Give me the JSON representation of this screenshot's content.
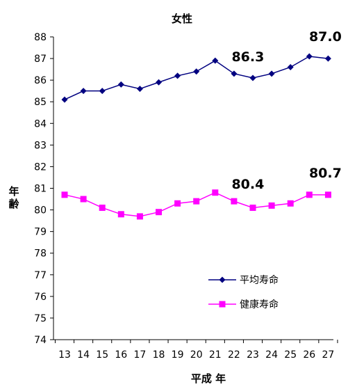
{
  "chart_data": {
    "type": "line",
    "title": "女性",
    "xlabel": "平成 年",
    "ylabel": "年齢",
    "x": [
      "13",
      "14",
      "15",
      "16",
      "17",
      "18",
      "19",
      "20",
      "21",
      "22",
      "23",
      "24",
      "25",
      "26",
      "27"
    ],
    "ylim": [
      74,
      88
    ],
    "yticks": [
      74,
      75,
      76,
      77,
      78,
      79,
      80,
      81,
      82,
      83,
      84,
      85,
      86,
      87,
      88
    ],
    "grid": false,
    "legend_position": "lower-right",
    "series": [
      {
        "name": "平均寿命",
        "color": "#000080",
        "marker": "diamond",
        "values": [
          85.1,
          85.5,
          85.5,
          85.8,
          85.6,
          85.9,
          86.2,
          86.4,
          86.9,
          86.3,
          86.1,
          86.3,
          86.6,
          87.1,
          87.0
        ]
      },
      {
        "name": "健康寿命",
        "color": "#FF00FF",
        "marker": "square",
        "values": [
          80.7,
          80.5,
          80.1,
          79.8,
          79.7,
          79.9,
          80.3,
          80.4,
          80.8,
          80.4,
          80.1,
          80.2,
          80.3,
          80.7,
          80.7
        ]
      }
    ],
    "annotations": [
      {
        "text": "86.3",
        "x": "22",
        "y": 86.3,
        "series": "平均寿命"
      },
      {
        "text": "87.0",
        "x": "27",
        "y": 87.0,
        "series": "平均寿命"
      },
      {
        "text": "80.4",
        "x": "22",
        "y": 80.4,
        "series": "健康寿命"
      },
      {
        "text": "80.7",
        "x": "27",
        "y": 80.7,
        "series": "健康寿命"
      }
    ]
  }
}
